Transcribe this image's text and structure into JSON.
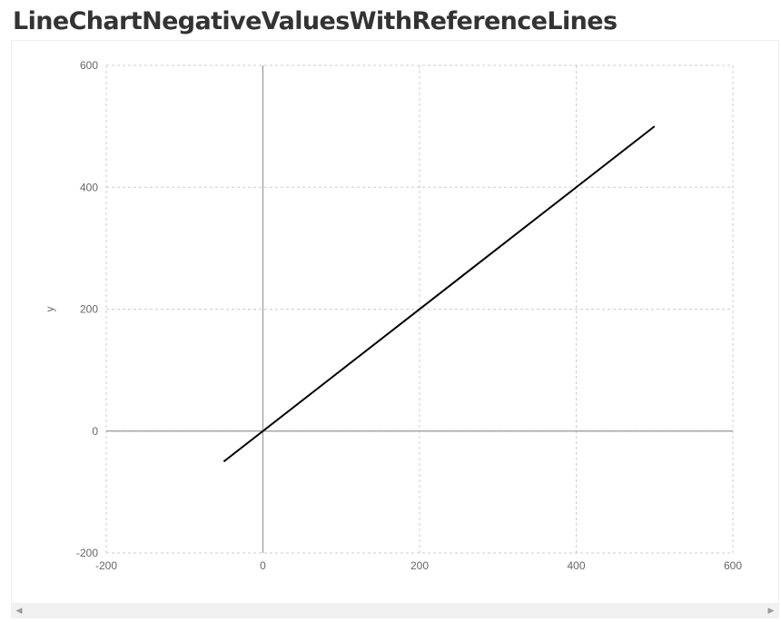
{
  "page": {
    "title": "LineChartNegativeValuesWithReferenceLines"
  },
  "scrollbar": {
    "left_icon": "scroll-left-icon",
    "right_icon": "scroll-right-icon"
  },
  "chart_data": {
    "type": "line",
    "title": "",
    "xlabel": "",
    "ylabel": "y",
    "xlim": [
      -200,
      600
    ],
    "ylim": [
      -200,
      600
    ],
    "xticks": [
      "-200",
      "0",
      "200",
      "400",
      "600"
    ],
    "yticks": [
      "-200",
      "0",
      "200",
      "400",
      "600"
    ],
    "grid": true,
    "reference_lines": [
      {
        "axis": "x",
        "value": 0
      },
      {
        "axis": "y",
        "value": 0
      }
    ],
    "series": [
      {
        "x": [
          -50,
          500
        ],
        "y": [
          -50,
          500
        ],
        "color": "#000000"
      }
    ]
  }
}
